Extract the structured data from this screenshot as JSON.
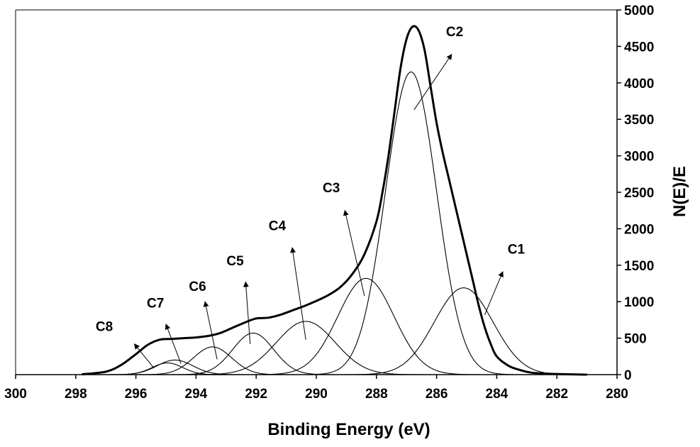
{
  "chart_data": {
    "type": "line",
    "title": "",
    "xlabel": "Binding Energy (eV)",
    "ylabel": "N(E)/E",
    "xlim": [
      300,
      280
    ],
    "ylim": [
      0,
      5000
    ],
    "x_reversed": true,
    "x_ticks": [
      300,
      298,
      296,
      294,
      292,
      290,
      288,
      286,
      284,
      282,
      280
    ],
    "y_ticks": [
      0,
      500,
      1000,
      1500,
      2000,
      2500,
      3000,
      3500,
      4000,
      4500,
      5000
    ],
    "y_axis_side": "right",
    "grid": false,
    "legend": "none",
    "series": [
      {
        "name": "C1",
        "center": 285.1,
        "height": 1190,
        "fwhm": 2.3
      },
      {
        "name": "C2",
        "center": 286.85,
        "height": 4150,
        "fwhm": 2.0
      },
      {
        "name": "C3",
        "center": 288.35,
        "height": 1320,
        "fwhm": 2.2
      },
      {
        "name": "C4",
        "center": 290.35,
        "height": 730,
        "fwhm": 2.3
      },
      {
        "name": "C5",
        "center": 292.1,
        "height": 570,
        "fwhm": 1.6
      },
      {
        "name": "C6",
        "center": 293.45,
        "height": 380,
        "fwhm": 1.5
      },
      {
        "name": "C7",
        "center": 294.7,
        "height": 200,
        "fwhm": 1.4
      },
      {
        "name": "C8",
        "center": 294.95,
        "height": 160,
        "fwhm": 1.2
      }
    ],
    "envelope": {
      "x": [
        297.8,
        297.0,
        296.5,
        296.0,
        295.6,
        295.2,
        294.8,
        294.4,
        294.0,
        293.6,
        293.2,
        292.8,
        292.4,
        292.0,
        291.6,
        291.2,
        290.8,
        290.4,
        290.0,
        289.6,
        289.2,
        288.8,
        288.4,
        288.0,
        287.8,
        287.6,
        287.4,
        287.2,
        287.0,
        286.8,
        286.6,
        286.4,
        286.2,
        286.0,
        285.8,
        285.6,
        285.4,
        285.2,
        285.0,
        284.8,
        284.6,
        284.4,
        284.2,
        284.0,
        283.6,
        283.2,
        282.8,
        282.0,
        281.0
      ],
      "y": [
        5,
        40,
        130,
        280,
        410,
        480,
        490,
        500,
        510,
        530,
        570,
        640,
        710,
        770,
        780,
        820,
        880,
        940,
        1010,
        1090,
        1200,
        1380,
        1650,
        2100,
        2500,
        3000,
        3600,
        4200,
        4600,
        4770,
        4720,
        4450,
        3950,
        3450,
        3050,
        2700,
        2350,
        2000,
        1650,
        1300,
        950,
        650,
        420,
        250,
        120,
        60,
        25,
        8,
        0
      ]
    },
    "annotations": [
      {
        "text": "C1",
        "label_x": 283.35,
        "label_y": 1660,
        "arrow_from": [
          284.4,
          820
        ],
        "arrow_to": [
          283.8,
          1410
        ]
      },
      {
        "text": "C2",
        "label_x": 285.4,
        "label_y": 4640,
        "arrow_from": [
          286.75,
          3630
        ],
        "arrow_to": [
          285.5,
          4390
        ]
      },
      {
        "text": "C3",
        "label_x": 289.5,
        "label_y": 2500,
        "arrow_from": [
          288.4,
          1080
        ],
        "arrow_to": [
          289.05,
          2250
        ]
      },
      {
        "text": "C4",
        "label_x": 291.3,
        "label_y": 1980,
        "arrow_from": [
          290.35,
          480
        ],
        "arrow_to": [
          290.8,
          1740
        ]
      },
      {
        "text": "C5",
        "label_x": 292.7,
        "label_y": 1500,
        "arrow_from": [
          292.2,
          420
        ],
        "arrow_to": [
          292.35,
          1270
        ]
      },
      {
        "text": "C6",
        "label_x": 293.95,
        "label_y": 1150,
        "arrow_from": [
          293.3,
          210
        ],
        "arrow_to": [
          293.7,
          1000
        ]
      },
      {
        "text": "C7",
        "label_x": 295.35,
        "label_y": 920,
        "arrow_from": [
          294.5,
          150
        ],
        "arrow_to": [
          295.0,
          690
        ]
      },
      {
        "text": "C8",
        "label_x": 297.05,
        "label_y": 600,
        "arrow_from": [
          295.4,
          90
        ],
        "arrow_to": [
          296.05,
          420
        ]
      }
    ]
  }
}
